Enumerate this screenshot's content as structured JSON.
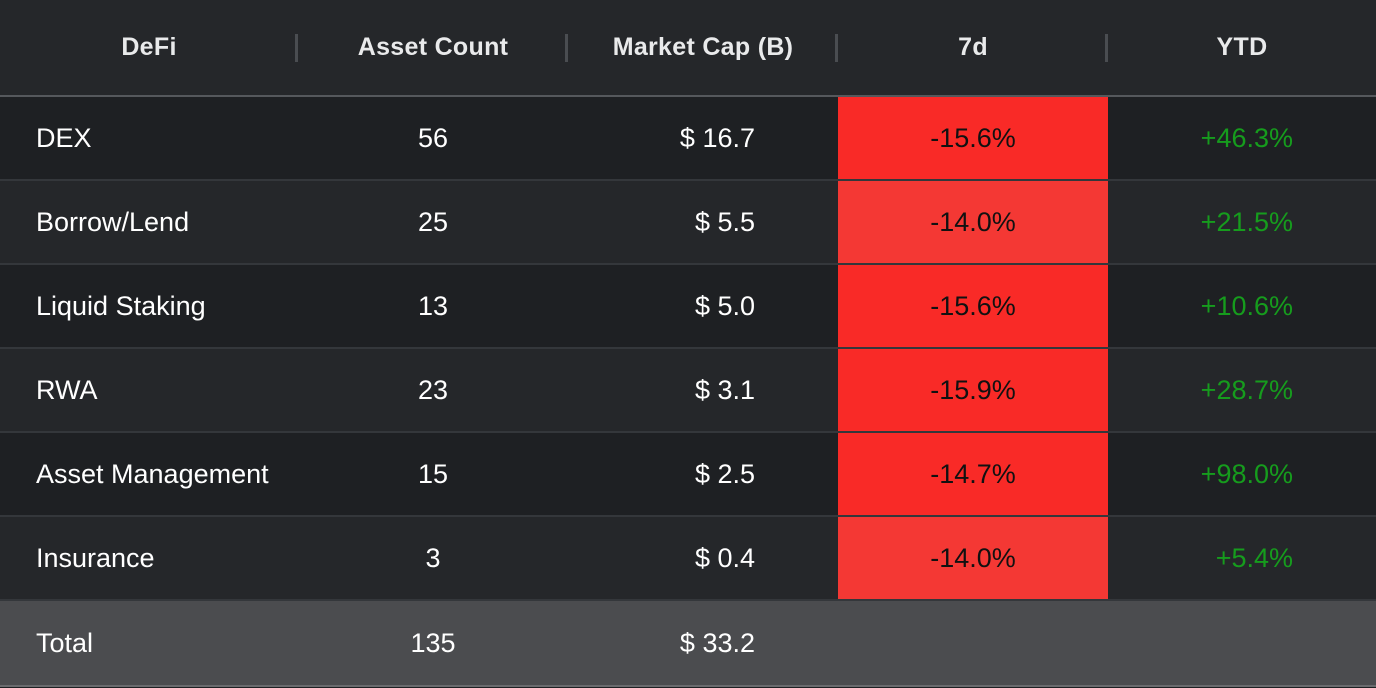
{
  "colors": {
    "header_bg": "#25272a",
    "row_dark": "#1e2023",
    "row_light": "#25272a",
    "total_bg": "#4b4c4f",
    "negative_strong": "#f92a27",
    "negative_light": "#f43834",
    "positive_text": "#169c1d"
  },
  "table": {
    "columns": [
      "DeFi",
      "Asset Count",
      "Market Cap (B)",
      "7d",
      "YTD"
    ],
    "rows": [
      {
        "name": "DEX",
        "count": "56",
        "cap": "$ 16.7",
        "wk": "-15.6%",
        "ytd": "+46.3%",
        "wk_color": "#f92a27"
      },
      {
        "name": "Borrow/Lend",
        "count": "25",
        "cap": "$ 5.5",
        "wk": "-14.0%",
        "ytd": "+21.5%",
        "wk_color": "#f43834"
      },
      {
        "name": "Liquid Staking",
        "count": "13",
        "cap": "$ 5.0",
        "wk": "-15.6%",
        "ytd": "+10.6%",
        "wk_color": "#f92a27"
      },
      {
        "name": "RWA",
        "count": "23",
        "cap": "$ 3.1",
        "wk": "-15.9%",
        "ytd": "+28.7%",
        "wk_color": "#f92a27"
      },
      {
        "name": "Asset Management",
        "count": "15",
        "cap": "$ 2.5",
        "wk": "-14.7%",
        "ytd": "+98.0%",
        "wk_color": "#f92a27"
      },
      {
        "name": "Insurance",
        "count": "3",
        "cap": "$ 0.4",
        "wk": "-14.0%",
        "ytd": "+5.4%",
        "wk_color": "#f43834"
      }
    ],
    "total": {
      "name": "Total",
      "count": "135",
      "cap": "$ 33.2",
      "wk": "",
      "ytd": ""
    }
  }
}
